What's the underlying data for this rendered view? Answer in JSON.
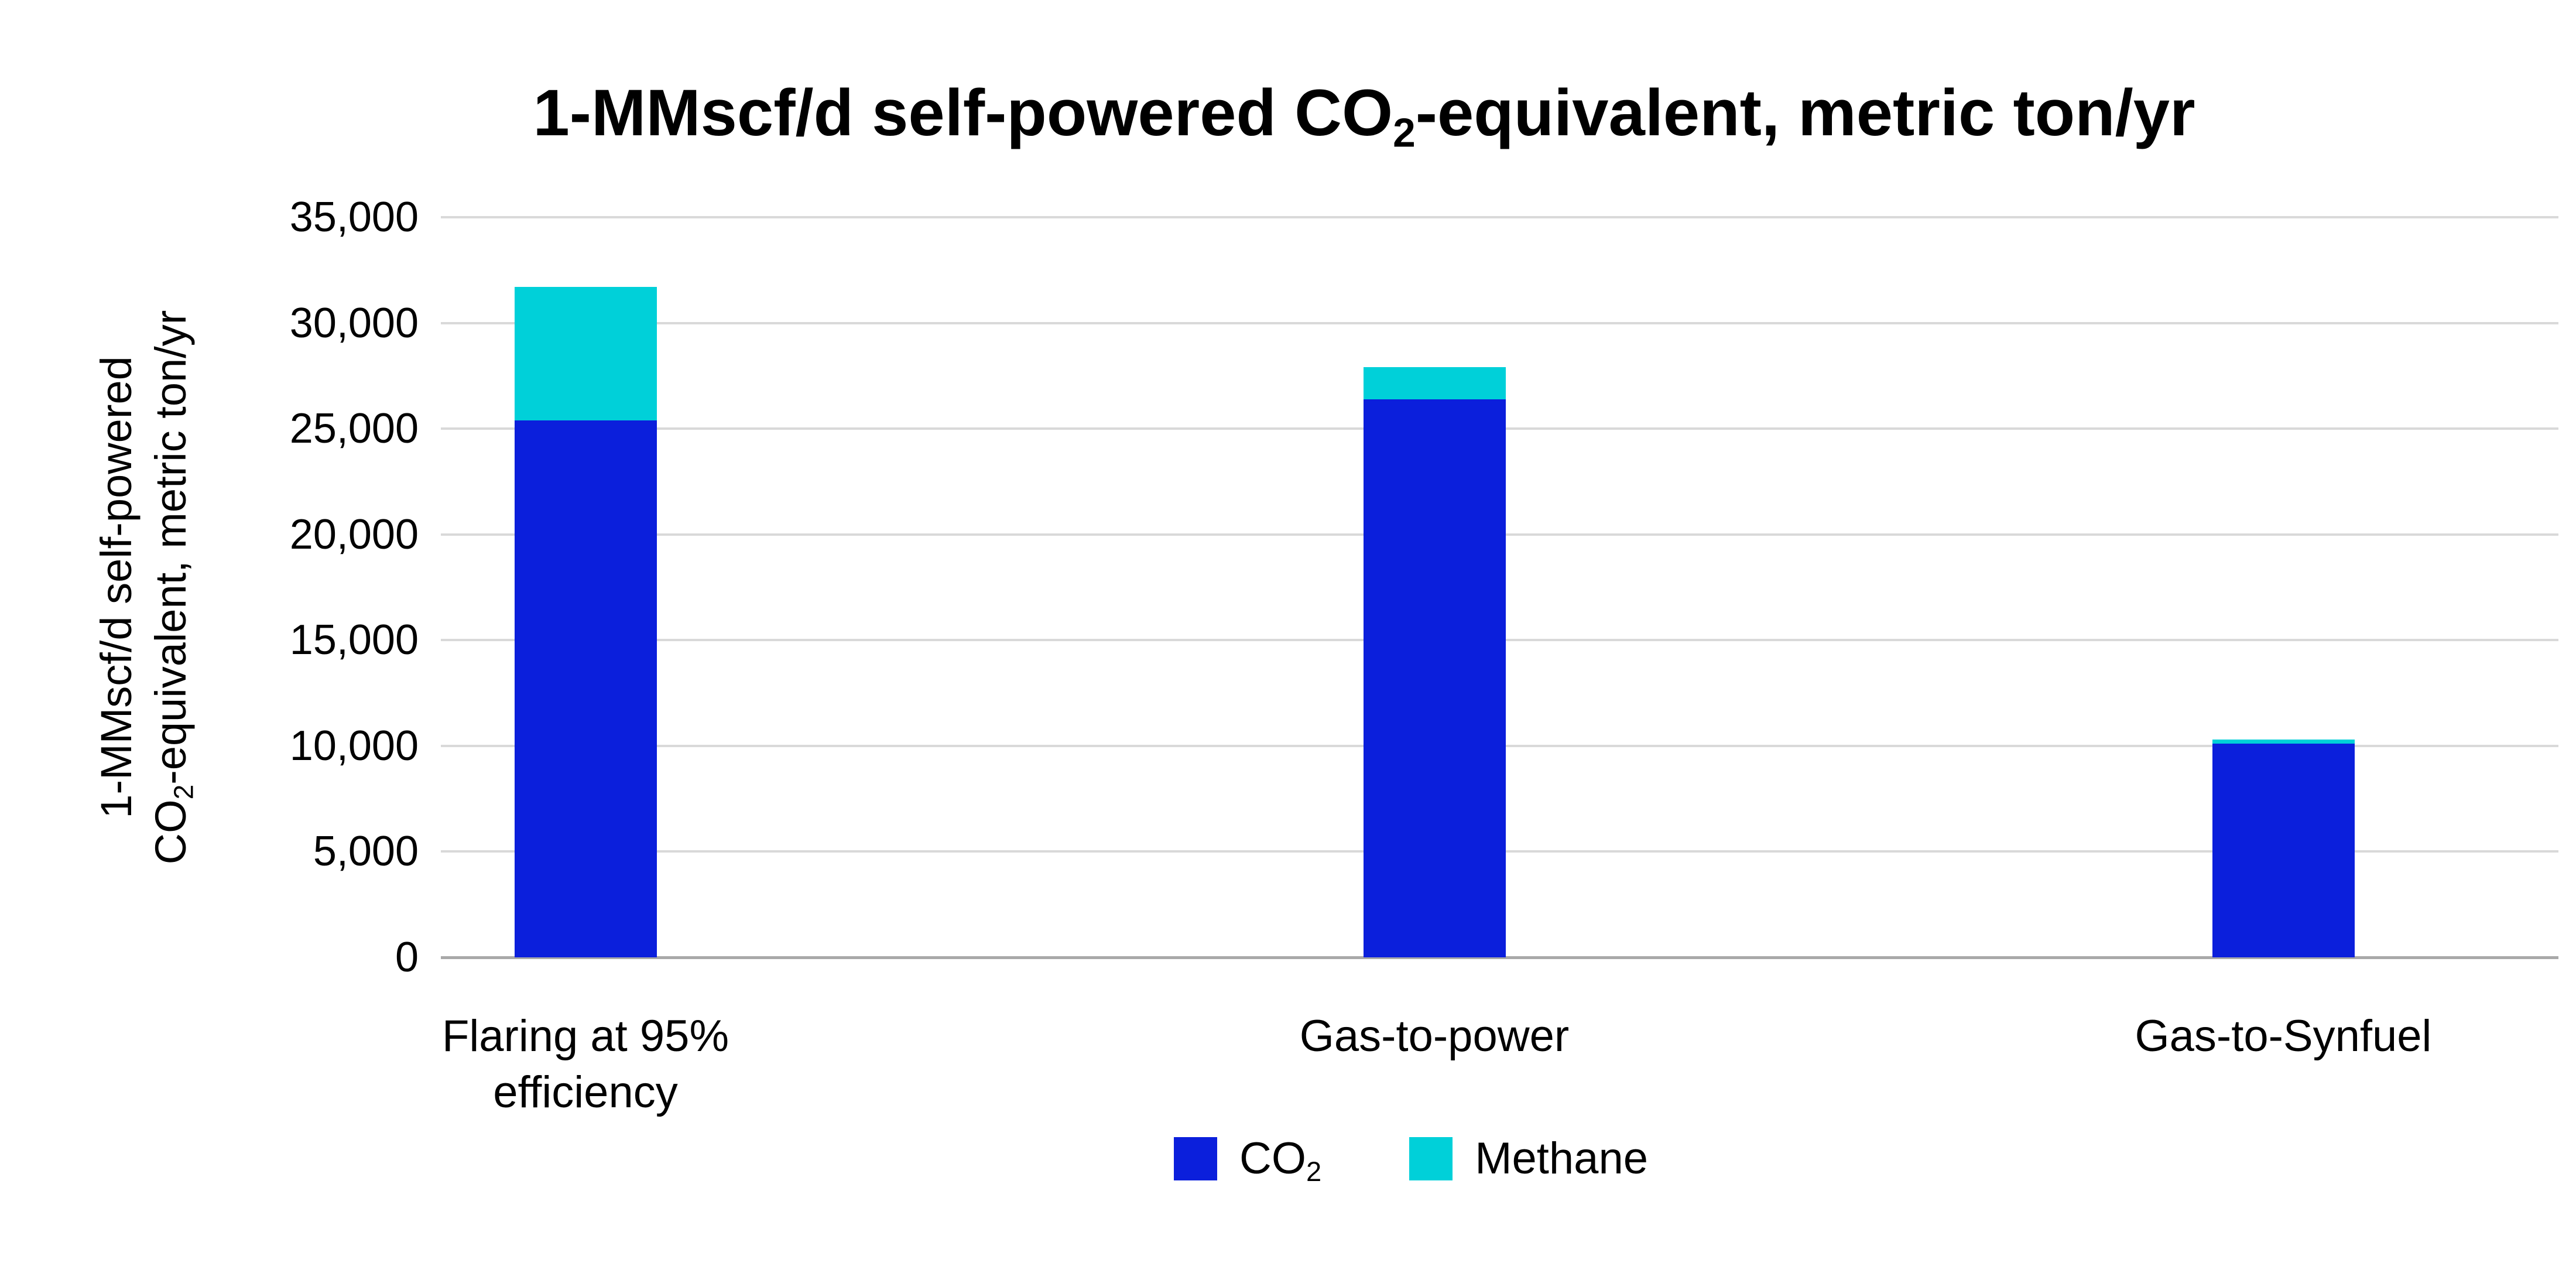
{
  "title": {
    "pre": "1-MMscf/d self-powered CO",
    "sub": "2",
    "post": "-equivalent, metric ton/yr"
  },
  "y_axis": {
    "label_line1": "1-MMscf/d self-powered",
    "label_line2_pre": "CO",
    "label_line2_sub": "2",
    "label_line2_post": "-equivalent, metric ton/yr",
    "ticks": [
      "35,000",
      "30,000",
      "25,000",
      "20,000",
      "15,000",
      "10,000",
      "5,000",
      "0"
    ]
  },
  "legend": {
    "co2_pre": "CO",
    "co2_sub": "2",
    "methane": "Methane"
  },
  "colors": {
    "co2": "#0b1fdc",
    "methane": "#00d0d9",
    "gridline": "#d9d9d9",
    "axis_line": "#a9a9a9"
  },
  "chart_data": {
    "type": "bar",
    "stacked": true,
    "title": "1-MMscf/d self-powered CO2-equivalent, metric ton/yr",
    "ylabel": "1-MMscf/d self-powered CO2-equivalent, metric ton/yr",
    "categories": [
      "Flaring at 95% efficiency",
      "Gas-to-power",
      "Gas-to-Synfuel"
    ],
    "series": [
      {
        "name": "CO2",
        "color": "#0b1fdc",
        "values": [
          25400,
          26400,
          10100
        ]
      },
      {
        "name": "Methane",
        "color": "#00d0d9",
        "values": [
          6300,
          1500,
          200
        ]
      }
    ],
    "totals": [
      31700,
      27900,
      10300
    ],
    "ylim": [
      0,
      35000
    ],
    "ytick_step": 5000,
    "grid": "horizontal-only",
    "legend_position": "bottom-center"
  }
}
